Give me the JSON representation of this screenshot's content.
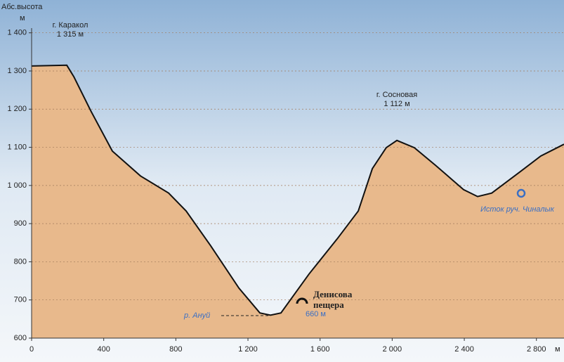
{
  "chart_data": {
    "type": "area",
    "y_label": "Абс.высота",
    "y_unit": "м",
    "x_unit": "м",
    "x": [
      0,
      195,
      234,
      331,
      448,
      604,
      760,
      857,
      993,
      1150,
      1266,
      1325,
      1383,
      1539,
      1695,
      1812,
      1890,
      1967,
      2026,
      2123,
      2240,
      2396,
      2474,
      2552,
      2707,
      2824,
      2953
    ],
    "values": [
      1313,
      1315,
      1285,
      1193,
      1090,
      1025,
      980,
      933,
      842,
      731,
      666,
      660,
      666,
      768,
      860,
      933,
      1044,
      1099,
      1118,
      1099,
      1053,
      989,
      971,
      980,
      1035,
      1077,
      1108
    ],
    "color": "#e8b98c",
    "xlim": [
      0,
      2953
    ],
    "ylim": [
      600,
      1486
    ],
    "xticks": [
      0,
      400,
      800,
      {
        "value": 1200,
        "label": "1 200"
      },
      {
        "value": 1600,
        "label": "1 600"
      },
      {
        "value": 2000,
        "label": "2 000"
      },
      {
        "value": 2400,
        "label": "2 400"
      },
      {
        "value": 2800,
        "label": "2 800"
      }
    ],
    "yticks": [
      600,
      700,
      800,
      900,
      {
        "value": 1000,
        "label": "1 000"
      },
      {
        "value": 1100,
        "label": "1 100"
      },
      {
        "value": 1200,
        "label": "1 200"
      },
      {
        "value": 1300,
        "label": "1 300"
      },
      {
        "value": 1400,
        "label": "1 400"
      }
    ],
    "grid": true,
    "annotations": {
      "karakol": "г. Каракол",
      "karakol_height": "1 315 м",
      "sosnovaya": "г. Сосновая",
      "sosnovaya_height": "1 112 м",
      "cave_1": "Денисова",
      "cave_2": "пещера",
      "river": "р. Ануй",
      "river_height": "660 м",
      "spring": "Исток руч. Чиналык"
    }
  }
}
